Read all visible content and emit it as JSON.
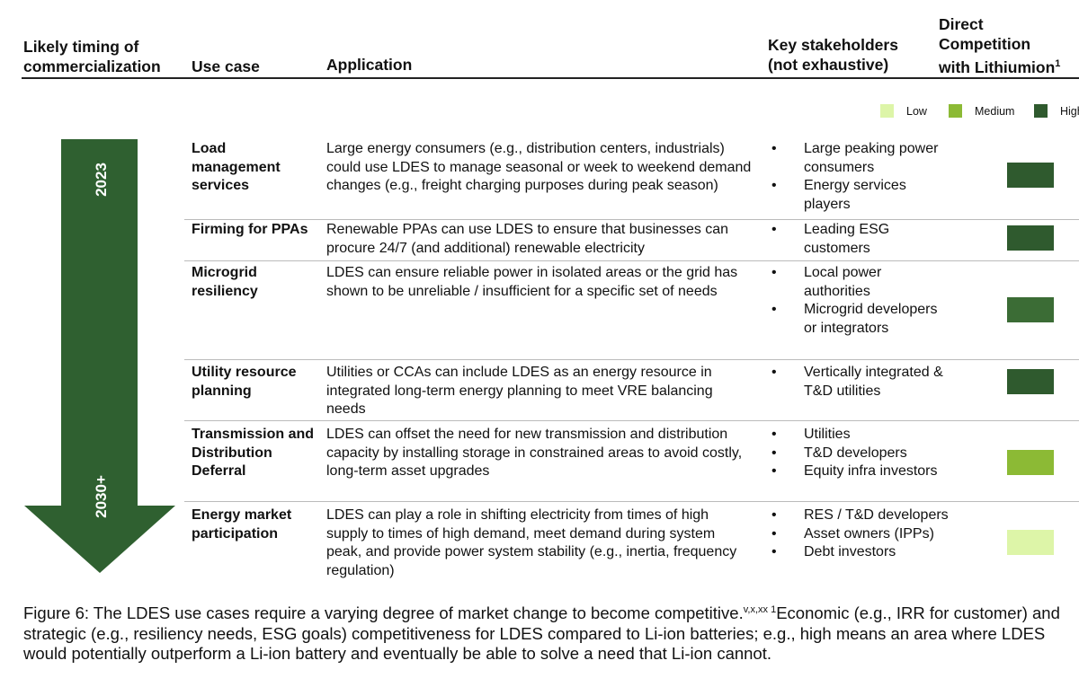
{
  "headers": {
    "timing": [
      "Likely timing of",
      "commercialization"
    ],
    "use_case": "Use case",
    "application": "Application",
    "stakeholders": [
      "Key stakeholders",
      "(not exhaustive)"
    ],
    "competition": [
      "Direct",
      "Competition",
      "with Lithiumion"
    ],
    "competition_sup": "1"
  },
  "legend": [
    {
      "label": "Low",
      "color": "#ddf5a8"
    },
    {
      "label": "Medium",
      "color": "#8cba35"
    },
    {
      "label": "High",
      "color": "#2f5a2e"
    }
  ],
  "arrow": {
    "start": "2023",
    "end": "2030+",
    "color": "#2f6030"
  },
  "rows": [
    {
      "use_case": "Load management services",
      "application": "Large energy consumers (e.g., distribution centers, industrials) could use LDES to manage seasonal or week to weekend demand changes (e.g., freight charging purposes during peak season)",
      "stakeholders": [
        "Large peaking power consumers",
        "Energy services players"
      ],
      "competition": "High",
      "color": "#2f5a2e"
    },
    {
      "use_case": "Firming for PPAs",
      "application": "Renewable PPAs can use LDES to ensure that businesses can procure 24/7 (and additional) renewable electricity",
      "stakeholders": [
        "Leading ESG customers"
      ],
      "competition": "High",
      "color": "#2f5a2e"
    },
    {
      "use_case": "Microgrid resiliency",
      "application": "LDES can ensure reliable power in isolated areas or the grid has shown to be unreliable / insufficient for a specific set of needs",
      "stakeholders": [
        "Local power authorities",
        "Microgrid developers or integrators"
      ],
      "competition": "Medium-High",
      "color": "#3b6c35"
    },
    {
      "use_case": "Utility resource planning",
      "application": "Utilities or CCAs can include LDES as an energy resource in integrated long-term energy planning to meet VRE balancing needs",
      "stakeholders": [
        "Vertically integrated & T&D utilities"
      ],
      "competition": "High",
      "color": "#2f5a2e"
    },
    {
      "use_case": "Transmission and Distribution Deferral",
      "application": "LDES can offset the need for new transmission and distribution capacity by installing storage in constrained areas to avoid costly, long-term asset upgrades",
      "stakeholders": [
        "Utilities",
        "T&D developers",
        "Equity infra investors"
      ],
      "competition": "Medium",
      "color": "#8cba35"
    },
    {
      "use_case": "Energy market participation",
      "application": "LDES can play a role in shifting electricity from times of high supply to times of high demand, meet demand during system peak, and provide power system stability (e.g., inertia, frequency regulation)",
      "stakeholders": [
        "RES / T&D developers",
        "Asset owners (IPPs)",
        "Debt investors"
      ],
      "competition": "Low",
      "color": "#ddf5a8"
    }
  ],
  "caption": {
    "text1": "Figure 6: The LDES use cases require a varying degree of market change to become competitive.",
    "sup1": "v,x,xx",
    "sup2": " 1",
    "text2": "Economic (e.g., IRR for customer) and strategic (e.g., resiliency needs, ESG goals) competitiveness for LDES compared to Li-ion batteries; e.g., high means an area where LDES would potentially outperform a Li-ion battery and eventually be able to solve a need that Li-ion cannot."
  }
}
